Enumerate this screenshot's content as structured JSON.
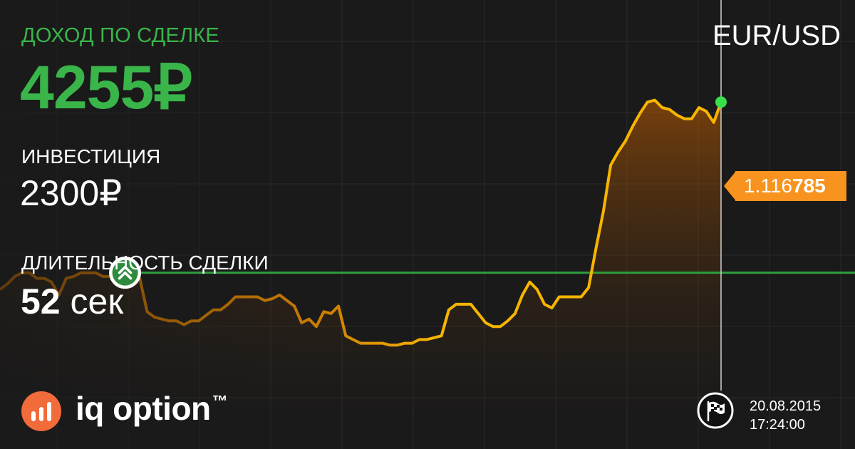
{
  "trade": {
    "profit_label": "ДОХОД ПО СДЕЛКЕ",
    "profit_value": "4255₽",
    "investment_label": "ИНВЕСТИЦИЯ",
    "investment_value": "2300₽",
    "duration_label": "ДЛИТЕЛЬНОСТЬ СДЕЛКИ",
    "duration_number": "52",
    "duration_unit": "сек"
  },
  "asset": {
    "pair": "EUR/USD"
  },
  "price": {
    "prefix": "1.116",
    "highlight": "785"
  },
  "brand": {
    "name": "iq option",
    "trademark": "™",
    "logo_icon": "bar-chart-icon"
  },
  "expiry": {
    "date": "20.08.2015",
    "time": "17:24:00",
    "icon": "finish-flag-icon"
  },
  "colors": {
    "background": "#1a1a1a",
    "profit_green": "#39b54a",
    "line_orange": "#f7b500",
    "price_tag": "#f7931e",
    "strike_line": "#2e9e3c",
    "current_dot": "#39e04a",
    "logo_orange": "#f26b3a"
  },
  "chart_data": {
    "type": "line",
    "title": "",
    "xlabel": "",
    "ylabel": "",
    "grid": true,
    "entry_index": 17,
    "current_value": 1.116785,
    "values": [
      1.11578,
      1.11581,
      1.11585,
      1.11587,
      1.11587,
      1.11584,
      1.11584,
      1.11582,
      1.11575,
      1.11584,
      1.11585,
      1.11587,
      1.11587,
      1.11587,
      1.11585,
      1.11585,
      1.11587,
      1.11587,
      1.11584,
      1.11584,
      1.11566,
      1.11563,
      1.11562,
      1.11561,
      1.11561,
      1.11559,
      1.11561,
      1.11561,
      1.11564,
      1.11567,
      1.11567,
      1.1157,
      1.11574,
      1.11574,
      1.11574,
      1.11574,
      1.11572,
      1.11573,
      1.11575,
      1.11572,
      1.11569,
      1.1156,
      1.11562,
      1.11558,
      1.11566,
      1.11565,
      1.11569,
      1.11553,
      1.11551,
      1.11549,
      1.11549,
      1.11549,
      1.11549,
      1.11548,
      1.11548,
      1.11549,
      1.11549,
      1.11551,
      1.11551,
      1.11552,
      1.11553,
      1.11567,
      1.1157,
      1.1157,
      1.1157,
      1.11565,
      1.1156,
      1.11558,
      1.11558,
      1.11561,
      1.11565,
      1.11575,
      1.11582,
      1.11578,
      1.1157,
      1.11568,
      1.11574,
      1.11574,
      1.11574,
      1.11574,
      1.11579,
      1.116,
      1.1162,
      1.11645,
      1.11652,
      1.11658,
      1.11666,
      1.11673,
      1.11679,
      1.1168,
      1.11676,
      1.11675,
      1.11672,
      1.1167,
      1.1167,
      1.11676,
      1.11674,
      1.11668,
      1.11679
    ]
  }
}
